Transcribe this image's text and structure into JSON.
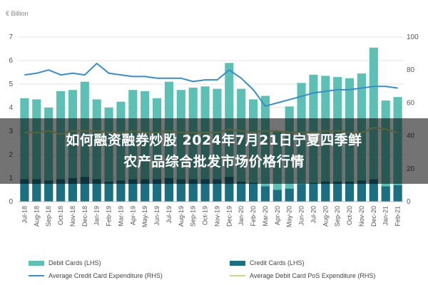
{
  "chart_data": {
    "type": "bar",
    "unit_label": "€ Billion",
    "categories": [
      "Jul-18",
      "Aug-18",
      "Sep-18",
      "Oct-18",
      "Nov-18",
      "Dec-18",
      "Jan-19",
      "Feb-19",
      "Mar-19",
      "Apr-19",
      "May-19",
      "Jun-19",
      "Jul-19",
      "Aug-19",
      "Sep-19",
      "Oct-19",
      "Nov-19",
      "Dec-19",
      "Jan-20",
      "Feb-20",
      "Mar-20",
      "Apr-20",
      "May-20",
      "Jun-20",
      "Jul-20",
      "Aug-20",
      "Sep-20",
      "Oct-20",
      "Nov-20",
      "Dec-20",
      "Jan-21",
      "Feb-21"
    ],
    "y_left": {
      "min": 0,
      "max": 7,
      "ticks": [
        0,
        1,
        2,
        3,
        4,
        5,
        6,
        7
      ]
    },
    "y_right": {
      "min": 0,
      "max": 100,
      "ticks": [
        0,
        20,
        40,
        60,
        80,
        100
      ]
    },
    "series": [
      {
        "name": "Debit Cards (LHS)",
        "kind": "bar",
        "axis": "left",
        "color": "#5cc0b4",
        "values": [
          4.4,
          4.35,
          4.0,
          4.7,
          4.75,
          5.1,
          4.35,
          4.0,
          4.25,
          4.75,
          4.7,
          4.4,
          5.1,
          4.75,
          4.85,
          4.9,
          4.8,
          5.9,
          4.8,
          4.35,
          4.5,
          3.0,
          4.05,
          5.05,
          5.4,
          5.35,
          5.3,
          5.25,
          5.45,
          6.55,
          4.3,
          4.45
        ]
      },
      {
        "name": "Credit Cards (LHS)",
        "kind": "bar",
        "axis": "left",
        "color": "#1b6f80",
        "values": [
          0.95,
          0.95,
          0.9,
          0.95,
          1.0,
          1.05,
          0.95,
          0.85,
          0.9,
          0.95,
          0.95,
          0.95,
          1.0,
          0.95,
          0.95,
          0.95,
          0.95,
          1.05,
          0.85,
          0.8,
          0.65,
          0.5,
          0.55,
          0.75,
          0.8,
          0.85,
          0.85,
          0.85,
          0.9,
          0.95,
          0.65,
          0.7
        ]
      },
      {
        "name": "Average Credit Card Expenditure (RHS)",
        "kind": "line",
        "axis": "right",
        "color": "#3a8dc6",
        "values": [
          77,
          78,
          80,
          77,
          78,
          77,
          84,
          78,
          77,
          76,
          76,
          75,
          75,
          75,
          73,
          74,
          74,
          80,
          75,
          68,
          58,
          60,
          62,
          64,
          66,
          67,
          68,
          68,
          69,
          70,
          70,
          69
        ]
      },
      {
        "name": "Average Debit Card PoS Expenditure (RHS)",
        "kind": "line",
        "axis": "right",
        "color": "#c4d98a",
        "values": [
          42,
          42,
          43,
          41,
          43,
          43,
          43,
          42,
          42,
          43,
          42,
          42,
          43,
          42,
          42,
          42,
          42,
          44,
          43,
          42,
          43,
          43,
          42,
          42,
          42,
          43,
          43,
          42,
          42,
          45,
          44,
          42
        ]
      }
    ]
  },
  "overlay_title": {
    "line1": "如何融资融券炒股 2024年7月21日宁夏四季鲜",
    "line2": "农产品综合批发市场价格行情"
  }
}
